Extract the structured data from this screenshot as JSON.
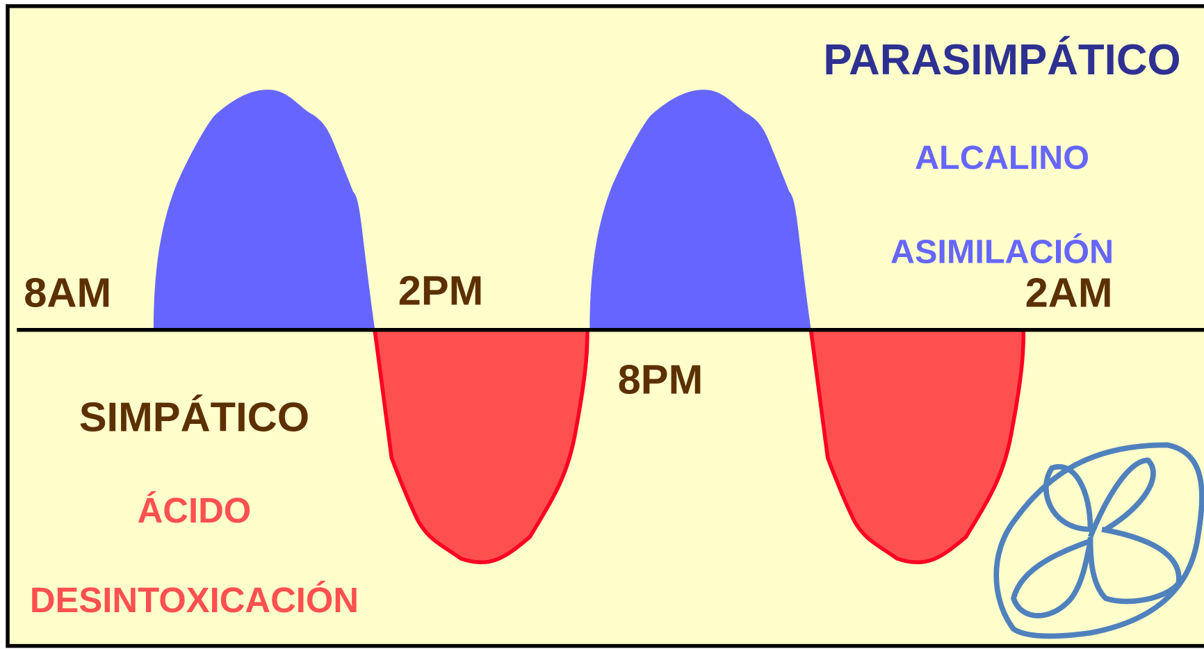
{
  "parasympathetic": {
    "title": "PARASIMPÁTICO",
    "state": "ALCALINO",
    "process": "ASIMILACIÓN"
  },
  "sympathetic": {
    "title": "SIMPÁTICO",
    "state": "ÁCIDO",
    "process": "DESINTOXICACIÓN"
  },
  "times": [
    "8AM",
    "2PM",
    "8PM",
    "2AM"
  ]
}
